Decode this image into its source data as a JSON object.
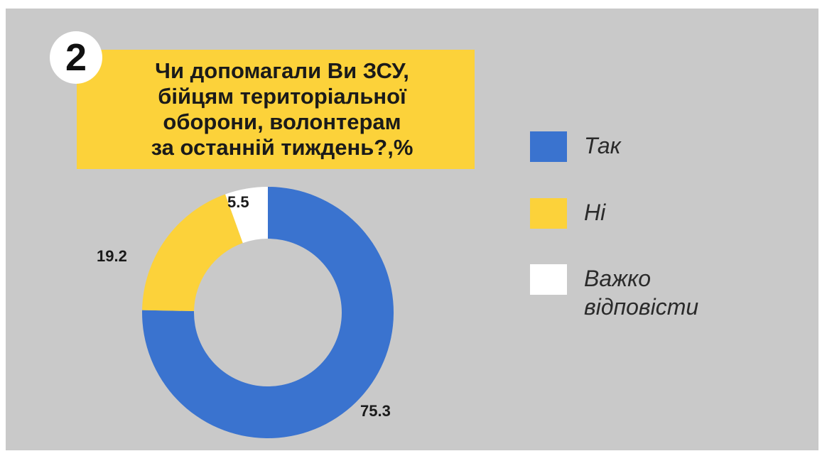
{
  "badge": "2",
  "title_lines": [
    "Чи допомагали Ви ЗСУ,",
    "бійцям територіальної",
    "оборони, волонтерам",
    "за останній тиждень?,%"
  ],
  "colors": {
    "background": "#c9c9c9",
    "title_bg": "#fcd23a",
    "yes": "#3a73cf",
    "no": "#fcd23a",
    "hard_to_say": "#ffffff"
  },
  "chart_data": {
    "type": "pie",
    "style": "donut",
    "title": "Чи допомагали Ви ЗСУ, бійцям територіальної оборони, волонтерам за останній тиждень?,%",
    "legend_position": "right",
    "series": [
      {
        "name": "Так",
        "value": 75.3,
        "value_label": "75.3",
        "color": "#3a73cf"
      },
      {
        "name": "Ні",
        "value": 19.2,
        "value_label": "19.2",
        "color": "#fcd23a"
      },
      {
        "name": "Важко відповісти",
        "value": 5.5,
        "value_label": "5.5",
        "color": "#ffffff"
      }
    ]
  },
  "legend": [
    {
      "label": "Так"
    },
    {
      "label": "Ні"
    },
    {
      "label": "Важко відповісти"
    }
  ]
}
